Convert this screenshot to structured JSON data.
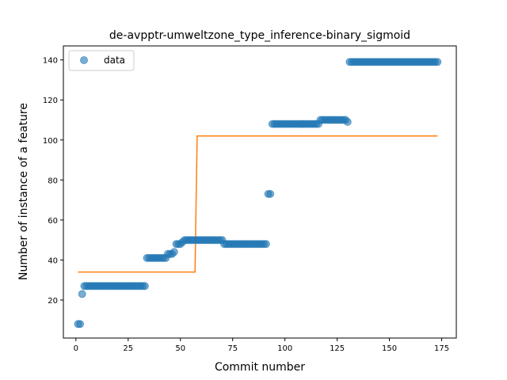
{
  "chart_data": {
    "type": "scatter",
    "title": "de-avpptr-umweltzone_type_inference-binary_sigmoid",
    "xlabel": "Commit number",
    "ylabel": "Number of instance of a feature",
    "xlim": [
      -6,
      182
    ],
    "ylim": [
      1,
      147
    ],
    "xticks": [
      0,
      25,
      50,
      75,
      100,
      125,
      150,
      175
    ],
    "yticks": [
      20,
      40,
      60,
      80,
      100,
      120,
      140
    ],
    "grid": false,
    "legend": {
      "position": "top-left",
      "entries": [
        "data"
      ]
    },
    "colors": {
      "data": "#1f77b4",
      "fit": "#ff7f0e"
    },
    "data_runs": [
      {
        "x_start": 1,
        "x_end": 2,
        "y": 8
      },
      {
        "x_start": 3,
        "x_end": 3,
        "y": 23
      },
      {
        "x_start": 4,
        "x_end": 33,
        "y": 27
      },
      {
        "x_start": 34,
        "x_end": 43,
        "y": 41
      },
      {
        "x_start": 44,
        "x_end": 46,
        "y": 43
      },
      {
        "x_start": 47,
        "x_end": 47,
        "y": 44
      },
      {
        "x_start": 48,
        "x_end": 50,
        "y": 48
      },
      {
        "x_start": 51,
        "x_end": 51,
        "y": 49
      },
      {
        "x_start": 52,
        "x_end": 70,
        "y": 50
      },
      {
        "x_start": 71,
        "x_end": 91,
        "y": 48
      },
      {
        "x_start": 92,
        "x_end": 93,
        "y": 73
      },
      {
        "x_start": 94,
        "x_end": 116,
        "y": 108
      },
      {
        "x_start": 117,
        "x_end": 129,
        "y": 110
      },
      {
        "x_start": 130,
        "x_end": 130,
        "y": 109
      },
      {
        "x_start": 131,
        "x_end": 173,
        "y": 139
      }
    ],
    "fit_line": {
      "x": [
        1,
        57,
        57.5,
        58,
        173
      ],
      "y": [
        34,
        34,
        68,
        102,
        102
      ]
    }
  }
}
